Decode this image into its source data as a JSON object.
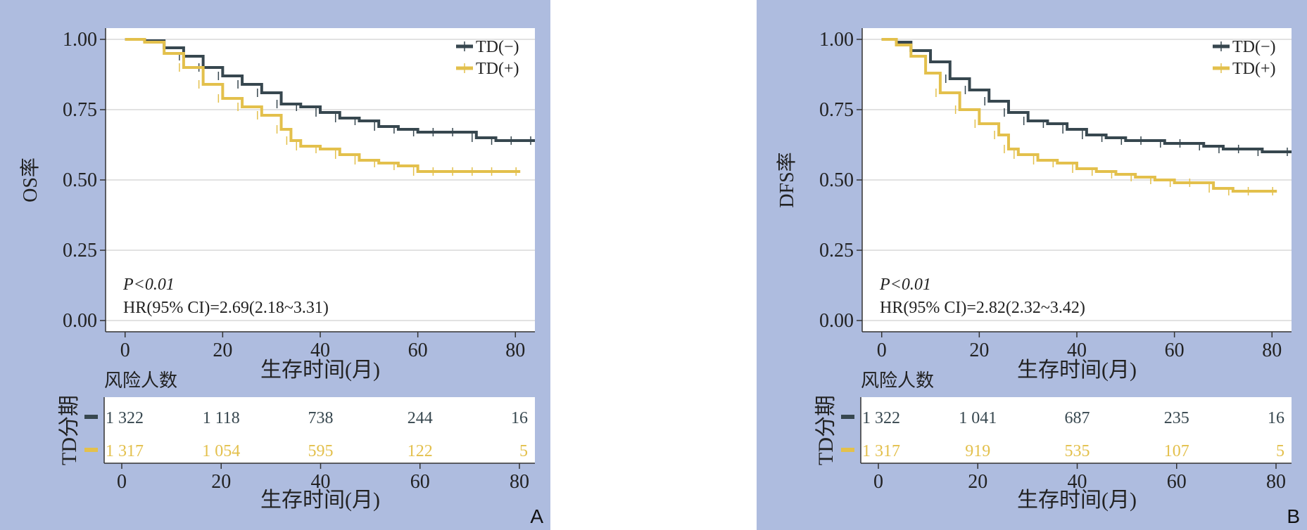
{
  "colors": {
    "background": "#aebcdf",
    "td_neg": "#37474f",
    "td_pos": "#e3c04c",
    "grid": "#d9d9d9"
  },
  "x_label": "生存时间(月)",
  "risk_label": "风险人数",
  "risk_group_label": "TD分期",
  "chart_data": [
    {
      "panel_label": "A",
      "type": "line",
      "ylabel": "OS率",
      "xlabel": "生存时间(月)",
      "xlim": [
        -4,
        84
      ],
      "ylim": [
        -0.04,
        1.04
      ],
      "xticks": [
        "0",
        "20",
        "40",
        "60",
        "80"
      ],
      "yticks": [
        "0.00",
        "0.25",
        "0.50",
        "0.75",
        "1.00"
      ],
      "legend": "top-right",
      "p_text": "P<0.01",
      "hr_text": "HR(95% CI)=2.69(2.18~3.31)",
      "series": [
        {
          "name": "TD(−)",
          "color": "#37474f",
          "x": [
            0,
            4,
            8,
            12,
            16,
            20,
            24,
            28,
            32,
            36,
            40,
            44,
            48,
            52,
            56,
            60,
            64,
            68,
            72,
            76,
            80,
            84
          ],
          "y": [
            1.0,
            0.995,
            0.97,
            0.94,
            0.9,
            0.87,
            0.84,
            0.81,
            0.77,
            0.76,
            0.74,
            0.72,
            0.71,
            0.69,
            0.68,
            0.67,
            0.67,
            0.67,
            0.65,
            0.64,
            0.64,
            0.64
          ]
        },
        {
          "name": "TD(+)",
          "color": "#e3c04c",
          "x": [
            0,
            4,
            8,
            12,
            16,
            20,
            24,
            28,
            32,
            34,
            36,
            40,
            44,
            48,
            52,
            56,
            60,
            64,
            68,
            72,
            76,
            81
          ],
          "y": [
            1.0,
            0.99,
            0.95,
            0.9,
            0.84,
            0.79,
            0.76,
            0.73,
            0.68,
            0.64,
            0.62,
            0.61,
            0.59,
            0.57,
            0.56,
            0.55,
            0.53,
            0.53,
            0.53,
            0.53,
            0.53,
            0.53
          ]
        }
      ],
      "risk_table": {
        "time_points": [
          0,
          20,
          40,
          60,
          80
        ],
        "rows": [
          {
            "name": "TD(−)",
            "values": [
              "1 322",
              "1 118",
              "738",
              "244",
              "16"
            ]
          },
          {
            "name": "TD(+)",
            "values": [
              "1 317",
              "1 054",
              "595",
              "122",
              "5"
            ]
          }
        ]
      }
    },
    {
      "panel_label": "B",
      "type": "line",
      "ylabel": "DFS率",
      "xlabel": "生存时间(月)",
      "xlim": [
        -4,
        84
      ],
      "ylim": [
        -0.04,
        1.04
      ],
      "xticks": [
        "0",
        "20",
        "40",
        "60",
        "80"
      ],
      "yticks": [
        "0.00",
        "0.25",
        "0.50",
        "0.75",
        "1.00"
      ],
      "legend": "top-right",
      "p_text": "P<0.01",
      "hr_text": "HR(95% CI)=2.82(2.32~3.42)",
      "series": [
        {
          "name": "TD(−)",
          "color": "#37474f",
          "x": [
            0,
            3,
            6,
            10,
            14,
            18,
            22,
            26,
            30,
            34,
            38,
            42,
            46,
            50,
            54,
            58,
            62,
            66,
            70,
            74,
            78,
            84
          ],
          "y": [
            1.0,
            0.99,
            0.96,
            0.92,
            0.86,
            0.82,
            0.78,
            0.74,
            0.71,
            0.7,
            0.68,
            0.66,
            0.65,
            0.64,
            0.64,
            0.63,
            0.63,
            0.62,
            0.61,
            0.61,
            0.6,
            0.6
          ]
        },
        {
          "name": "TD(+)",
          "color": "#e3c04c",
          "x": [
            0,
            3,
            6,
            9,
            12,
            16,
            20,
            24,
            26,
            28,
            32,
            36,
            40,
            44,
            48,
            52,
            56,
            60,
            64,
            68,
            72,
            76,
            81
          ],
          "y": [
            1.0,
            0.98,
            0.94,
            0.88,
            0.81,
            0.75,
            0.7,
            0.66,
            0.61,
            0.59,
            0.57,
            0.56,
            0.54,
            0.53,
            0.52,
            0.51,
            0.5,
            0.49,
            0.49,
            0.47,
            0.46,
            0.46,
            0.46
          ]
        }
      ],
      "risk_table": {
        "time_points": [
          0,
          20,
          40,
          60,
          80
        ],
        "rows": [
          {
            "name": "TD(−)",
            "values": [
              "1 322",
              "1 041",
              "687",
              "235",
              "16"
            ]
          },
          {
            "name": "TD(+)",
            "values": [
              "1 317",
              "919",
              "535",
              "107",
              "5"
            ]
          }
        ]
      }
    }
  ]
}
